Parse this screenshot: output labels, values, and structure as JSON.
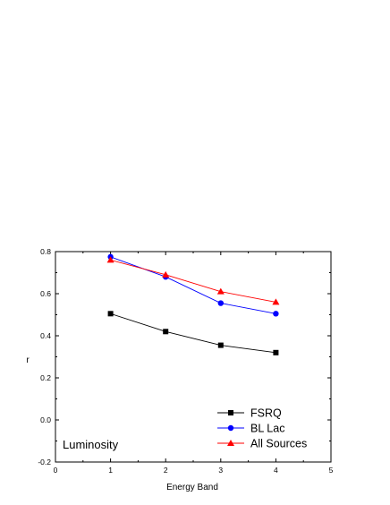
{
  "chart_data": {
    "type": "line",
    "title": "",
    "xlabel": "Energy Band",
    "ylabel": "r",
    "xlim": [
      0,
      5
    ],
    "ylim": [
      -0.2,
      0.8
    ],
    "x_ticks": [
      0,
      1,
      2,
      3,
      4,
      5
    ],
    "y_ticks": [
      -0.2,
      0.0,
      0.2,
      0.4,
      0.6,
      0.8
    ],
    "x_tick_labels": [
      "0",
      "1",
      "2",
      "3",
      "4",
      "5"
    ],
    "y_tick_labels": [
      "-0.2",
      "0.0",
      "0.2",
      "0.4",
      "0.6",
      "0.8"
    ],
    "grid": false,
    "legend_position": "bottom-right",
    "annotation": "Luminosity",
    "x": [
      1,
      2,
      3,
      4
    ],
    "series": [
      {
        "name": "FSRQ",
        "marker": "square",
        "color": "#000000",
        "values": [
          0.505,
          0.42,
          0.355,
          0.32
        ]
      },
      {
        "name": "BL Lac",
        "marker": "circle",
        "color": "#0000ff",
        "values": [
          0.775,
          0.68,
          0.555,
          0.505
        ]
      },
      {
        "name": "All Sources",
        "marker": "triangle",
        "color": "#ff0000",
        "values": [
          0.76,
          0.69,
          0.61,
          0.56
        ]
      }
    ]
  }
}
